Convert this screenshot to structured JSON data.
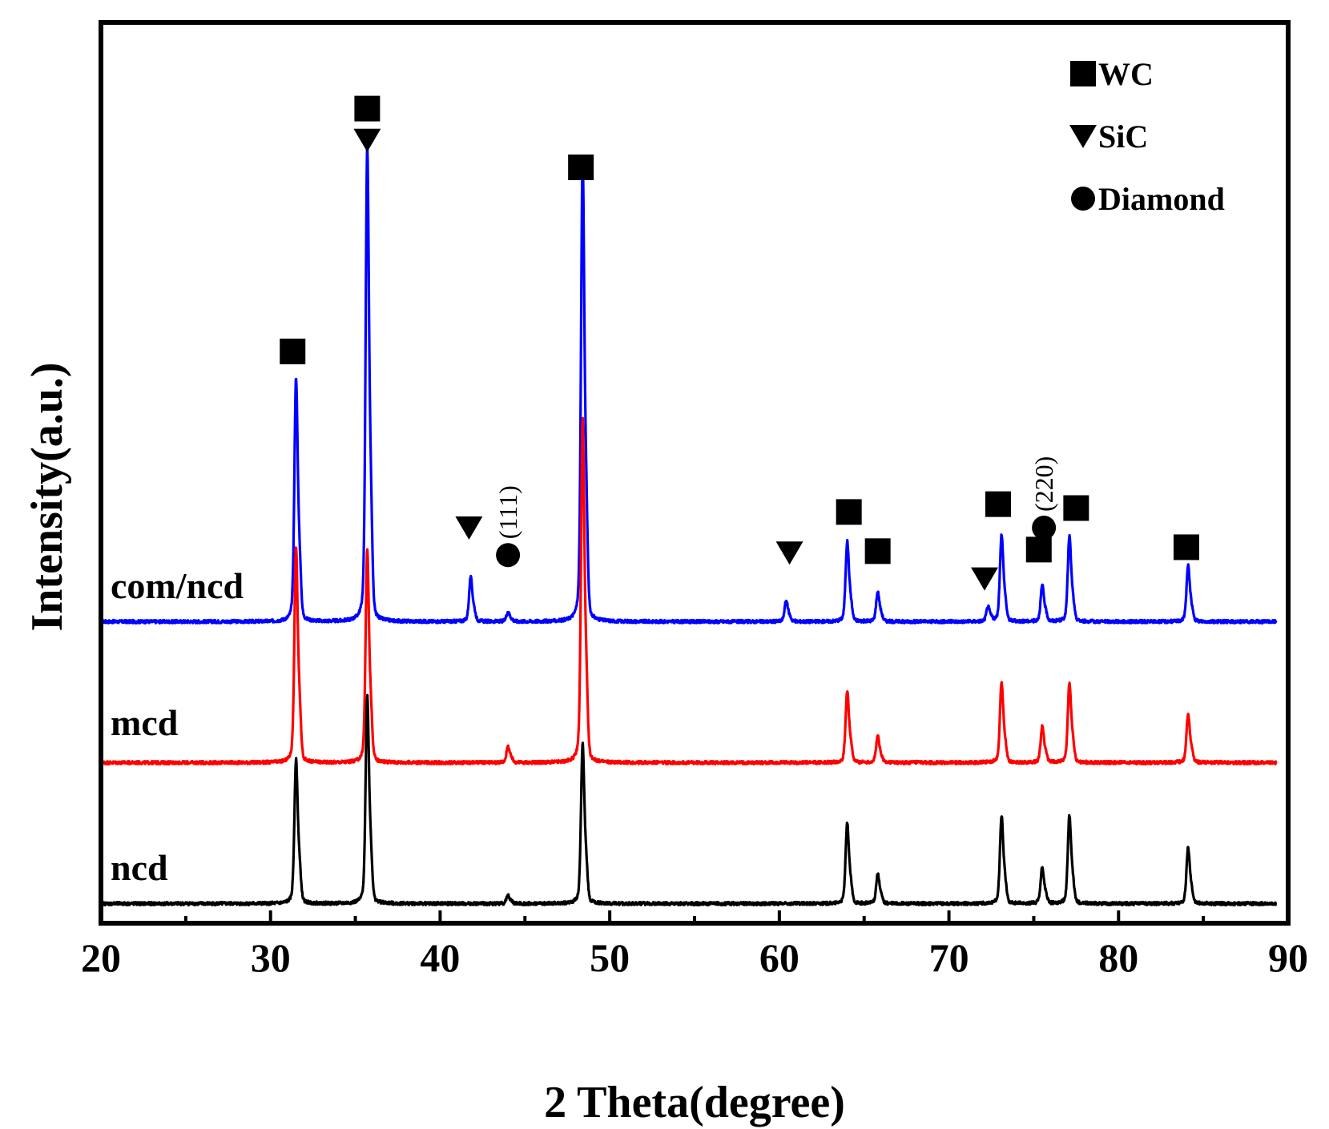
{
  "chart_data": {
    "type": "line",
    "title": "",
    "xlabel": "2 Theta(degree)",
    "ylabel": "Intensity(a.u.)",
    "xlim": [
      20,
      90
    ],
    "ylim": [
      0,
      1.15
    ],
    "x_ticks": [
      20,
      30,
      40,
      50,
      60,
      70,
      80,
      90
    ],
    "x_tick_labels": [
      "20",
      "30",
      "40",
      "50",
      "60",
      "70",
      "80",
      "90"
    ],
    "y_ticks_shown": false,
    "grid": false,
    "peak_width_deg": 0.13,
    "series": [
      {
        "name": "com/ncd",
        "label": "com/ncd",
        "color": "#0000ff",
        "baseline": 0.385,
        "peaks": [
          {
            "x": 31.5,
            "h": 0.305
          },
          {
            "x": 35.7,
            "h": 0.595
          },
          {
            "x": 41.8,
            "h": 0.055
          },
          {
            "x": 44.0,
            "h": 0.012
          },
          {
            "x": 48.4,
            "h": 0.58
          },
          {
            "x": 60.4,
            "h": 0.026
          },
          {
            "x": 64.0,
            "h": 0.1
          },
          {
            "x": 65.8,
            "h": 0.037
          },
          {
            "x": 72.3,
            "h": 0.018
          },
          {
            "x": 73.1,
            "h": 0.109
          },
          {
            "x": 75.5,
            "h": 0.045
          },
          {
            "x": 77.1,
            "h": 0.107
          },
          {
            "x": 84.1,
            "h": 0.07
          }
        ]
      },
      {
        "name": "mcd",
        "label": "mcd",
        "color": "#ff0000",
        "baseline": 0.205,
        "peaks": [
          {
            "x": 31.5,
            "h": 0.27
          },
          {
            "x": 35.7,
            "h": 0.265
          },
          {
            "x": 44.0,
            "h": 0.02
          },
          {
            "x": 48.4,
            "h": 0.43
          },
          {
            "x": 64.0,
            "h": 0.09
          },
          {
            "x": 65.8,
            "h": 0.033
          },
          {
            "x": 73.1,
            "h": 0.1
          },
          {
            "x": 75.5,
            "h": 0.045
          },
          {
            "x": 77.1,
            "h": 0.1
          },
          {
            "x": 84.1,
            "h": 0.06
          }
        ]
      },
      {
        "name": "ncd",
        "label": "ncd",
        "color": "#000000",
        "baseline": 0.025,
        "peaks": [
          {
            "x": 31.5,
            "h": 0.18
          },
          {
            "x": 35.7,
            "h": 0.26
          },
          {
            "x": 44.0,
            "h": 0.01
          },
          {
            "x": 48.4,
            "h": 0.2
          },
          {
            "x": 64.0,
            "h": 0.1
          },
          {
            "x": 65.8,
            "h": 0.037
          },
          {
            "x": 73.1,
            "h": 0.11
          },
          {
            "x": 75.5,
            "h": 0.045
          },
          {
            "x": 77.1,
            "h": 0.11
          },
          {
            "x": 84.1,
            "h": 0.07
          }
        ]
      }
    ],
    "legend": {
      "position": "top-right",
      "entries": [
        {
          "marker": "square",
          "label": "WC"
        },
        {
          "marker": "triangle-down",
          "label": "SiC"
        },
        {
          "marker": "circle",
          "label": "Diamond"
        }
      ]
    },
    "annotations": [
      {
        "marker": "square",
        "x": 31.3,
        "y": 0.73
      },
      {
        "marker": "square",
        "x": 35.7,
        "y": 1.04
      },
      {
        "marker": "triangle-down",
        "x": 35.7,
        "y": 1.0
      },
      {
        "marker": "square",
        "x": 48.3,
        "y": 0.965
      },
      {
        "marker": "triangle-down",
        "x": 41.7,
        "y": 0.505
      },
      {
        "marker": "circle",
        "x": 44.0,
        "y": 0.47,
        "label": "(111)"
      },
      {
        "marker": "triangle-down",
        "x": 60.6,
        "y": 0.473
      },
      {
        "marker": "square",
        "x": 64.1,
        "y": 0.525
      },
      {
        "marker": "square",
        "x": 65.8,
        "y": 0.475
      },
      {
        "marker": "triangle-down",
        "x": 72.1,
        "y": 0.44
      },
      {
        "marker": "square",
        "x": 72.9,
        "y": 0.535
      },
      {
        "marker": "square",
        "x": 75.3,
        "y": 0.477
      },
      {
        "marker": "circle",
        "x": 75.6,
        "y": 0.505,
        "label": "(220)"
      },
      {
        "marker": "square",
        "x": 77.5,
        "y": 0.53
      },
      {
        "marker": "square",
        "x": 84.0,
        "y": 0.48
      }
    ]
  }
}
